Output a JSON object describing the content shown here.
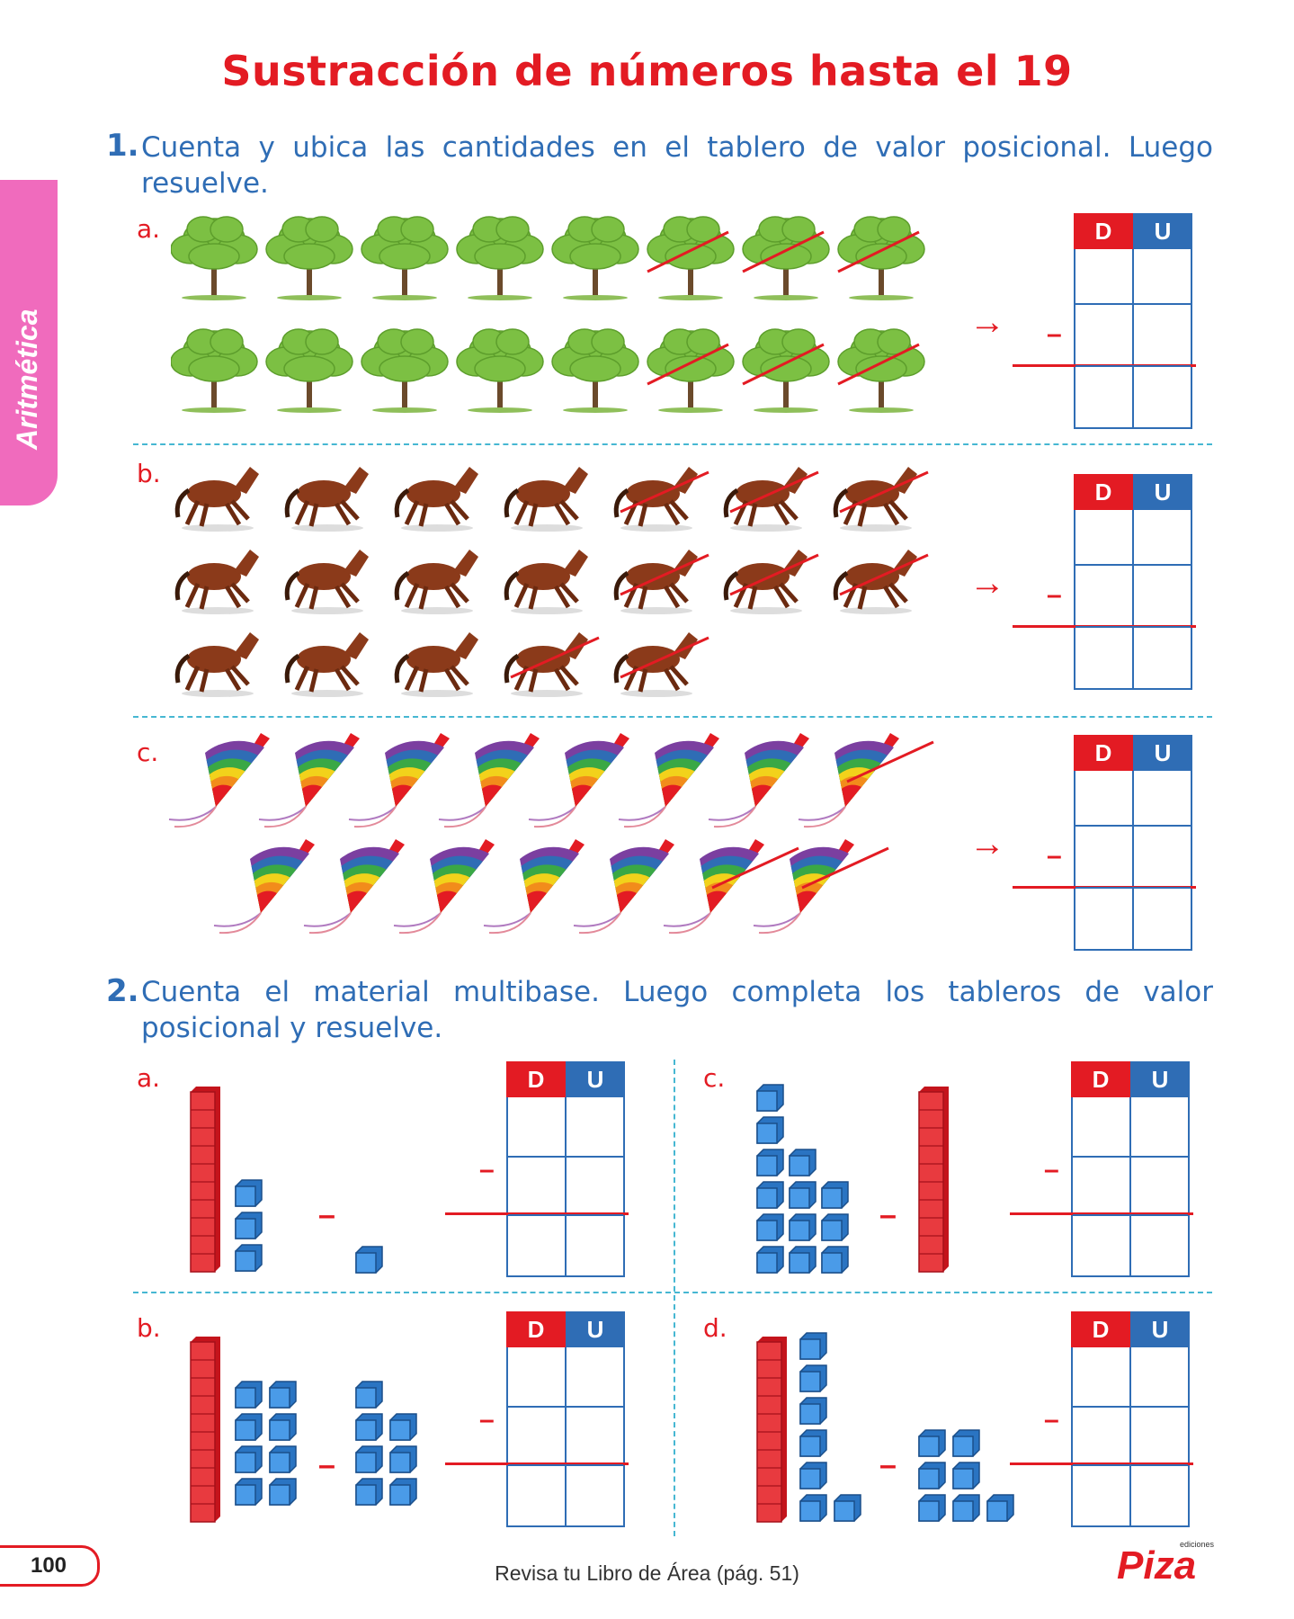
{
  "title": "Sustracción de números hasta el 19",
  "side_tab": "Aritmética",
  "exercise1": {
    "number": "1.",
    "text": "Cuenta y ubica las cantidades en el tablero de valor posicional. Luego resuelve.",
    "items": [
      {
        "letter": "a.",
        "picture": "tree-icon",
        "rows": [
          8,
          8
        ],
        "crossed": [
          3,
          3
        ]
      },
      {
        "letter": "b.",
        "picture": "horse-icon",
        "rows": [
          7,
          7,
          5
        ],
        "crossed": [
          3,
          3,
          2
        ]
      },
      {
        "letter": "c.",
        "picture": "kite-icon",
        "rows": [
          8,
          7
        ],
        "crossed": [
          1,
          2
        ]
      }
    ]
  },
  "exercise2": {
    "number": "2.",
    "text": "Cuenta el material multibase. Luego completa los tableros de valor posicional y resuelve.",
    "items": [
      {
        "letter": "a."
      },
      {
        "letter": "c."
      },
      {
        "letter": "b."
      },
      {
        "letter": "d."
      }
    ]
  },
  "board": {
    "d": "D",
    "u": "U"
  },
  "minus": "–",
  "arrow": "→",
  "page_number": "100",
  "footer": "Revisa tu Libro de Área (pág. 51)",
  "logo": "Piza",
  "logo_small": "ediciones",
  "colors": {
    "red": "#e31b23",
    "blue": "#2f6db5",
    "pink": "#f06bbd",
    "cube": "#3a8fe0"
  }
}
